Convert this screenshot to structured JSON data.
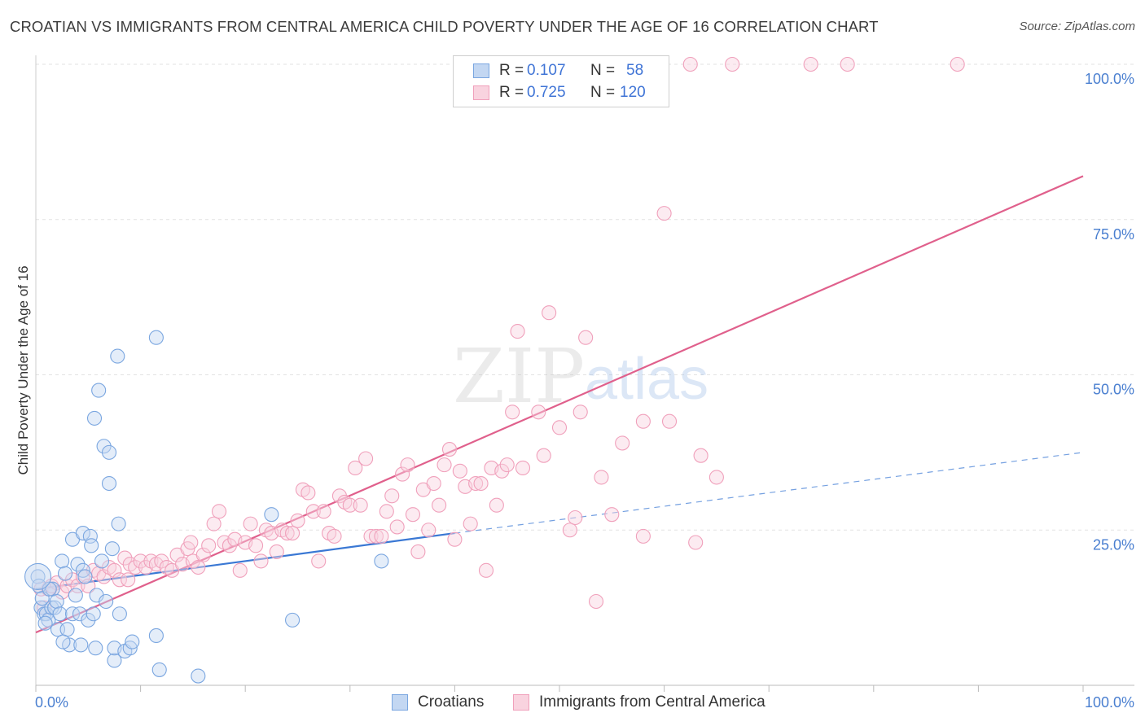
{
  "title": "CROATIAN VS IMMIGRANTS FROM CENTRAL AMERICA CHILD POVERTY UNDER THE AGE OF 16 CORRELATION CHART",
  "source": "Source: ZipAtlas.com",
  "watermark": {
    "zip": "ZIP",
    "atlas": "atlas"
  },
  "colors": {
    "blue": "#7aa6e0",
    "blue_fill": "#c3d7f2",
    "blue_line": "#3a78d4",
    "pink": "#f0a0bb",
    "pink_fill": "#f9d3df",
    "pink_line": "#e0608c",
    "grid": "#e2e2e2",
    "tick_text": "#4a7fd0"
  },
  "legend": {
    "rows": [
      {
        "r_label": "R =",
        "r_value": "0.107",
        "n_label": "N =",
        "n_value": "58"
      },
      {
        "r_label": "R =",
        "r_value": "0.725",
        "n_label": "N =",
        "n_value": "120"
      }
    ]
  },
  "bottom_legend": {
    "croatians": "Croatians",
    "immigrants": "Immigrants from Central America"
  },
  "chart_data": {
    "type": "scatter",
    "title": "CROATIAN VS IMMIGRANTS FROM CENTRAL AMERICA CHILD POVERTY UNDER THE AGE OF 16 CORRELATION CHART",
    "xlabel": "",
    "ylabel": "Child Poverty Under the Age of 16",
    "xlim": [
      0,
      100
    ],
    "ylim": [
      0,
      100
    ],
    "x_tick_labels": {
      "left": "0.0%",
      "right": "100.0%"
    },
    "y_ticks": [
      {
        "value": 25,
        "label": "25.0%"
      },
      {
        "value": 50,
        "label": "50.0%"
      },
      {
        "value": 75,
        "label": "75.0%"
      },
      {
        "value": 100,
        "label": "100.0%"
      }
    ],
    "series": [
      {
        "name": "Croatians",
        "color": "blue",
        "r": 0.107,
        "n": 58,
        "trend": {
          "x0": 0,
          "y0": 15.5,
          "x1": 40,
          "y1": 24.5,
          "dash_x1": 100,
          "dash_y1": 37.5
        },
        "points": [
          [
            0.2,
            17.5
          ],
          [
            0.5,
            12.5
          ],
          [
            0.8,
            11.5
          ],
          [
            1.0,
            11.5
          ],
          [
            1.2,
            10.5
          ],
          [
            1.5,
            12.5
          ],
          [
            1.6,
            15.5
          ],
          [
            1.8,
            12.5
          ],
          [
            2.0,
            13.5
          ],
          [
            2.1,
            9.0
          ],
          [
            2.3,
            11.5
          ],
          [
            2.5,
            20.0
          ],
          [
            2.8,
            18.0
          ],
          [
            3.0,
            9.0
          ],
          [
            3.2,
            6.5
          ],
          [
            3.5,
            11.5
          ],
          [
            3.5,
            23.5
          ],
          [
            3.8,
            14.5
          ],
          [
            4.0,
            19.5
          ],
          [
            4.2,
            11.5
          ],
          [
            4.3,
            6.5
          ],
          [
            4.5,
            24.5
          ],
          [
            4.5,
            18.5
          ],
          [
            4.7,
            17.5
          ],
          [
            5.0,
            10.5
          ],
          [
            5.2,
            24.0
          ],
          [
            5.3,
            22.5
          ],
          [
            5.5,
            11.5
          ],
          [
            5.6,
            43.0
          ],
          [
            5.7,
            6.0
          ],
          [
            5.8,
            14.5
          ],
          [
            6.0,
            47.5
          ],
          [
            6.3,
            20.0
          ],
          [
            6.5,
            38.5
          ],
          [
            6.7,
            13.5
          ],
          [
            7.0,
            32.5
          ],
          [
            7.0,
            37.5
          ],
          [
            7.3,
            22.0
          ],
          [
            7.5,
            4.0
          ],
          [
            7.5,
            6.0
          ],
          [
            7.8,
            53.0
          ],
          [
            7.9,
            26.0
          ],
          [
            8.0,
            11.5
          ],
          [
            8.5,
            5.5
          ],
          [
            9.0,
            6.0
          ],
          [
            9.2,
            7.0
          ],
          [
            11.5,
            8.0
          ],
          [
            11.5,
            56.0
          ],
          [
            11.8,
            2.5
          ],
          [
            15.5,
            1.5
          ],
          [
            22.5,
            27.5
          ],
          [
            24.5,
            10.5
          ],
          [
            33.0,
            20.0
          ],
          [
            0.3,
            16.0
          ],
          [
            0.6,
            14.0
          ],
          [
            0.9,
            10.0
          ],
          [
            1.3,
            15.5
          ],
          [
            2.6,
            7.0
          ]
        ]
      },
      {
        "name": "Immigrants from Central America",
        "color": "pink",
        "r": 0.725,
        "n": 120,
        "trend": {
          "x0": 0,
          "y0": 8.5,
          "x1": 100,
          "y1": 82.0
        },
        "points": [
          [
            0.5,
            15.5
          ],
          [
            0.8,
            12.5
          ],
          [
            1.2,
            15.5
          ],
          [
            1.5,
            16.0
          ],
          [
            2.0,
            16.5
          ],
          [
            2.5,
            15.0
          ],
          [
            3.0,
            16.0
          ],
          [
            3.5,
            17.0
          ],
          [
            4.0,
            16.0
          ],
          [
            4.5,
            17.5
          ],
          [
            5.0,
            16.0
          ],
          [
            5.5,
            18.5
          ],
          [
            6.0,
            18.0
          ],
          [
            6.5,
            17.5
          ],
          [
            7.0,
            19.0
          ],
          [
            7.5,
            18.5
          ],
          [
            8.0,
            17.0
          ],
          [
            8.5,
            20.5
          ],
          [
            9.0,
            19.5
          ],
          [
            9.5,
            19.0
          ],
          [
            10.0,
            20.0
          ],
          [
            10.5,
            19.0
          ],
          [
            11.0,
            20.0
          ],
          [
            11.5,
            19.5
          ],
          [
            12.0,
            20.0
          ],
          [
            12.5,
            19.0
          ],
          [
            13.0,
            18.5
          ],
          [
            13.5,
            21.0
          ],
          [
            14.0,
            19.5
          ],
          [
            14.5,
            22.0
          ],
          [
            15.0,
            20.0
          ],
          [
            15.5,
            19.0
          ],
          [
            16.0,
            21.0
          ],
          [
            16.5,
            22.5
          ],
          [
            17.0,
            26.0
          ],
          [
            17.5,
            28.0
          ],
          [
            18.0,
            23.0
          ],
          [
            18.5,
            22.5
          ],
          [
            19.0,
            23.5
          ],
          [
            19.5,
            18.5
          ],
          [
            20.0,
            23.0
          ],
          [
            20.5,
            26.0
          ],
          [
            21.0,
            22.5
          ],
          [
            21.5,
            20.0
          ],
          [
            22.0,
            25.0
          ],
          [
            22.5,
            24.5
          ],
          [
            23.0,
            21.5
          ],
          [
            23.5,
            25.0
          ],
          [
            24.0,
            24.5
          ],
          [
            24.5,
            24.5
          ],
          [
            25.0,
            26.5
          ],
          [
            25.5,
            31.5
          ],
          [
            26.0,
            31.0
          ],
          [
            26.5,
            28.0
          ],
          [
            27.0,
            20.0
          ],
          [
            27.5,
            28.0
          ],
          [
            28.0,
            24.5
          ],
          [
            28.5,
            24.0
          ],
          [
            29.0,
            30.5
          ],
          [
            29.5,
            29.5
          ],
          [
            30.0,
            29.0
          ],
          [
            30.5,
            35.0
          ],
          [
            31.0,
            29.0
          ],
          [
            31.5,
            36.5
          ],
          [
            32.0,
            24.0
          ],
          [
            32.5,
            24.0
          ],
          [
            33.0,
            24.0
          ],
          [
            33.5,
            28.0
          ],
          [
            34.0,
            30.5
          ],
          [
            34.5,
            25.5
          ],
          [
            35.0,
            34.0
          ],
          [
            35.5,
            35.5
          ],
          [
            36.0,
            27.5
          ],
          [
            36.5,
            21.5
          ],
          [
            37.0,
            31.5
          ],
          [
            37.5,
            25.0
          ],
          [
            38.0,
            32.5
          ],
          [
            38.5,
            29.0
          ],
          [
            39.0,
            35.5
          ],
          [
            39.5,
            38.0
          ],
          [
            40.0,
            23.5
          ],
          [
            40.5,
            34.5
          ],
          [
            41.0,
            32.0
          ],
          [
            41.5,
            26.0
          ],
          [
            42.0,
            32.5
          ],
          [
            42.5,
            32.5
          ],
          [
            43.0,
            18.5
          ],
          [
            43.5,
            35.0
          ],
          [
            44.0,
            29.0
          ],
          [
            44.5,
            34.5
          ],
          [
            45.0,
            35.5
          ],
          [
            45.5,
            44.0
          ],
          [
            46.0,
            57.0
          ],
          [
            46.5,
            35.0
          ],
          [
            48.0,
            44.0
          ],
          [
            48.5,
            37.0
          ],
          [
            49.0,
            60.0
          ],
          [
            50.0,
            41.5
          ],
          [
            51.0,
            25.0
          ],
          [
            51.5,
            27.0
          ],
          [
            52.0,
            44.0
          ],
          [
            52.5,
            56.0
          ],
          [
            53.5,
            13.5
          ],
          [
            54.0,
            33.5
          ],
          [
            55.0,
            27.5
          ],
          [
            56.0,
            39.0
          ],
          [
            58.0,
            24.0
          ],
          [
            58.0,
            42.5
          ],
          [
            60.0,
            76.0
          ],
          [
            60.5,
            42.5
          ],
          [
            63.0,
            23.0
          ],
          [
            63.5,
            37.0
          ],
          [
            65.0,
            33.5
          ],
          [
            62.5,
            100.0
          ],
          [
            66.5,
            100.0
          ],
          [
            74.0,
            100.0
          ],
          [
            77.5,
            100.0
          ],
          [
            88.0,
            100.0
          ],
          [
            8.8,
            17.0
          ],
          [
            14.8,
            23.0
          ]
        ]
      }
    ]
  }
}
